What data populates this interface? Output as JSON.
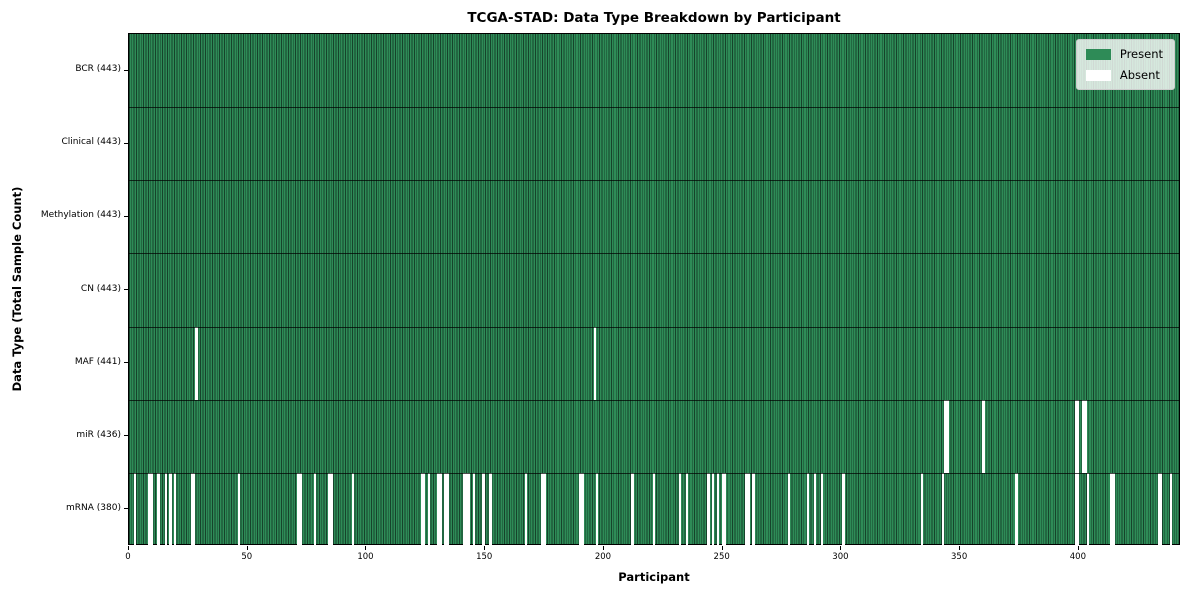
{
  "colors": {
    "present": "#2e8b57",
    "present_edge": "#16432b",
    "absent": "#ffffff",
    "spine": "#000000",
    "background": "#ffffff"
  },
  "chart_data": {
    "type": "heatmap",
    "title": "TCGA-STAD: Data Type Breakdown by Participant",
    "xlabel": "Participant",
    "ylabel": "Data Type (Total Sample Count)",
    "x_range": [
      0,
      443
    ],
    "n_participants": 443,
    "x_ticks": [
      0,
      50,
      100,
      150,
      200,
      250,
      300,
      350,
      400
    ],
    "grid": false,
    "legend_position": "upper right",
    "legend": [
      {
        "label": "Present",
        "color": "#2e8b57"
      },
      {
        "label": "Absent",
        "color": "#ffffff"
      }
    ],
    "rows": [
      {
        "name": "BCR",
        "label": "BCR (443)",
        "present_count": 443,
        "absent_participants": []
      },
      {
        "name": "Clinical",
        "label": "Clinical (443)",
        "present_count": 443,
        "absent_participants": []
      },
      {
        "name": "Methylation",
        "label": "Methylation (443)",
        "present_count": 443,
        "absent_participants": []
      },
      {
        "name": "CN",
        "label": "CN (443)",
        "present_count": 443,
        "absent_participants": []
      },
      {
        "name": "MAF",
        "label": "MAF (441)",
        "present_count": 441,
        "absent_participants": [
          28,
          196
        ]
      },
      {
        "name": "miR",
        "label": "miR (436)",
        "present_count": 436,
        "absent_participants": [
          344,
          345,
          360,
          399,
          400,
          402,
          403
        ]
      },
      {
        "name": "mRNA",
        "label": "mRNA (380)",
        "present_count": 380,
        "absent_participants": [
          2,
          8,
          9,
          12,
          15,
          17,
          19,
          26,
          27,
          46,
          71,
          72,
          78,
          84,
          85,
          94,
          123,
          124,
          126,
          130,
          131,
          133,
          134,
          141,
          142,
          143,
          145,
          149,
          152,
          167,
          174,
          175,
          190,
          191,
          197,
          212,
          221,
          232,
          235,
          244,
          246,
          248,
          250,
          251,
          260,
          261,
          263,
          278,
          286,
          289,
          292,
          301,
          334,
          343,
          374,
          399,
          400,
          404,
          414,
          415,
          434,
          435,
          439
        ]
      }
    ]
  }
}
